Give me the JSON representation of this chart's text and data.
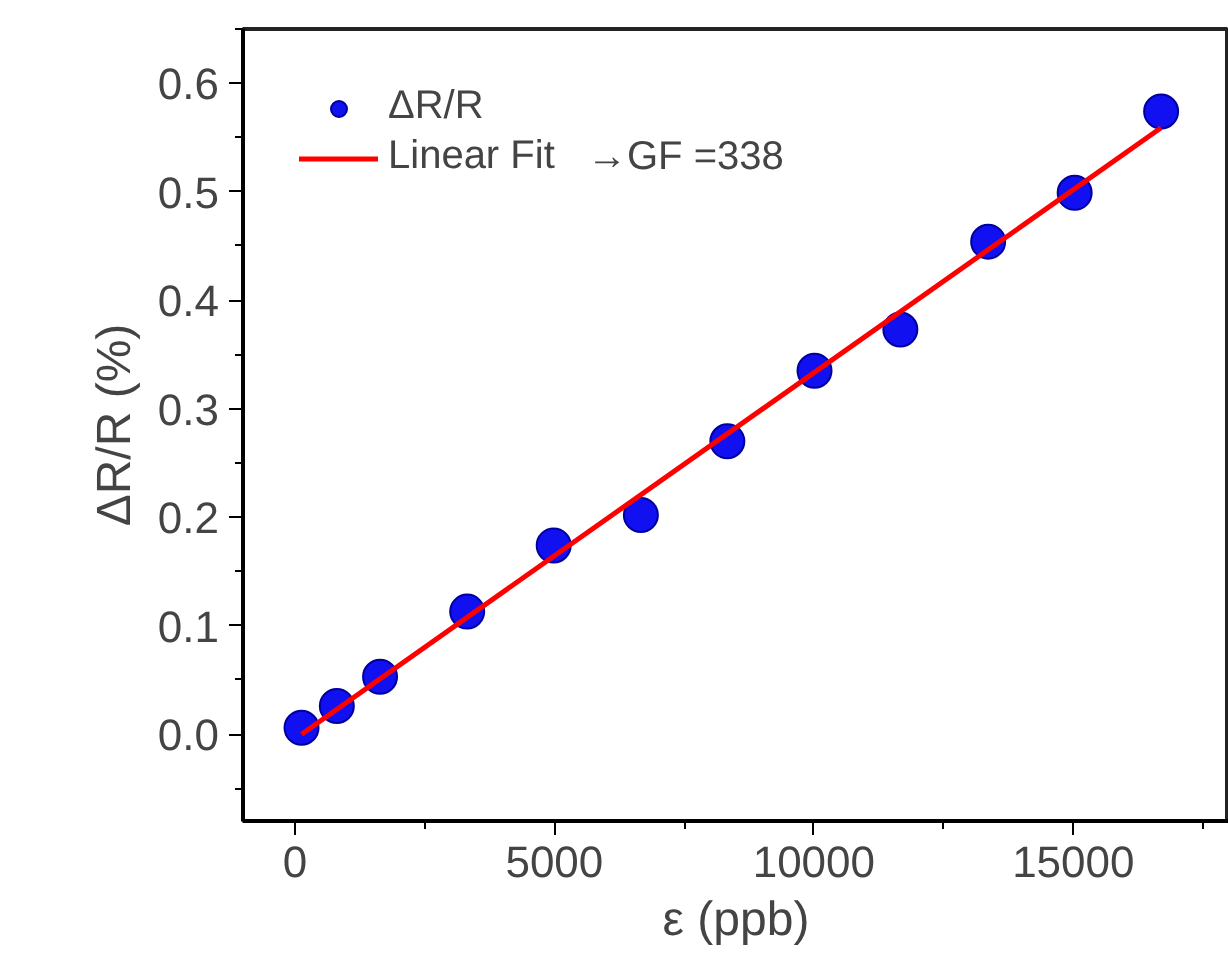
{
  "chart_data": {
    "type": "scatter",
    "xlabel": "ε (ppb)",
    "ylabel": "ΔR/R (%)",
    "xlim": [
      -1000,
      18000
    ],
    "ylim": [
      -0.08,
      0.65
    ],
    "xticks": [
      0,
      5000,
      10000,
      15000
    ],
    "yticks": [
      {
        "value": 0,
        "label": "0.0"
      },
      0.1,
      0.2,
      0.3,
      0.4,
      0.5,
      0.6
    ],
    "grid": false,
    "legend": "top left",
    "annotations": [
      "→GF =338"
    ],
    "series": [
      {
        "name": "ΔR/R",
        "marker": "circle",
        "color": "#1010f0",
        "x": [
          128,
          808,
          1641,
          3320,
          4987,
          6667,
          8333,
          10013,
          11667,
          13359,
          15026,
          16692
        ],
        "values": [
          0.006,
          0.026,
          0.053,
          0.113,
          0.174,
          0.202,
          0.27,
          0.335,
          0.373,
          0.454,
          0.499,
          0.574
        ]
      },
      {
        "name": "Linear Fit",
        "type": "line",
        "color": "#ff0000",
        "line_style": "solid",
        "marker": "none",
        "x": [
          128,
          16692
        ],
        "values": [
          0,
          0.559
        ]
      }
    ]
  }
}
